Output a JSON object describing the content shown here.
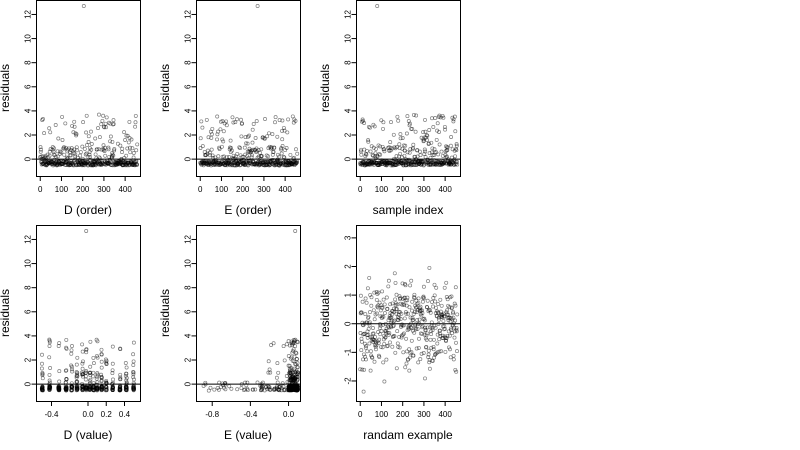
{
  "chart_data": [
    {
      "type": "scatter",
      "xlabel": "D (order)",
      "ylabel": "residuals",
      "xlim": [
        -20,
        470
      ],
      "ylim": [
        -1.4,
        13.2
      ],
      "xticks": [
        0,
        100,
        200,
        300,
        400
      ],
      "yticks": [
        0,
        2,
        4,
        6,
        8,
        10,
        12
      ],
      "xtick_labels": [
        "0",
        "100",
        "200",
        "300",
        "400"
      ],
      "ytick_labels": [
        "0",
        "2",
        "4",
        "6",
        "8",
        "10",
        "12"
      ],
      "hline": 0,
      "x_kind": "index",
      "x_max": 458,
      "outliers": [
        {
          "x": 205,
          "y": 12.7
        }
      ]
    },
    {
      "type": "scatter",
      "xlabel": "E (order)",
      "ylabel": "residuals",
      "xlim": [
        -20,
        470
      ],
      "ylim": [
        -1.4,
        13.2
      ],
      "xticks": [
        0,
        100,
        200,
        300,
        400
      ],
      "yticks": [
        0,
        2,
        4,
        6,
        8,
        10,
        12
      ],
      "xtick_labels": [
        "0",
        "100",
        "200",
        "300",
        "400"
      ],
      "ytick_labels": [
        "0",
        "2",
        "4",
        "6",
        "8",
        "10",
        "12"
      ],
      "hline": 0,
      "x_kind": "index",
      "x_max": 458,
      "outliers": [
        {
          "x": 270,
          "y": 12.7
        }
      ]
    },
    {
      "type": "scatter",
      "xlabel": "sample index",
      "ylabel": "residuals",
      "xlim": [
        -20,
        470
      ],
      "ylim": [
        -1.4,
        13.2
      ],
      "xticks": [
        0,
        100,
        200,
        300,
        400
      ],
      "yticks": [
        0,
        2,
        4,
        6,
        8,
        10,
        12
      ],
      "xtick_labels": [
        "0",
        "100",
        "200",
        "300",
        "400"
      ],
      "ytick_labels": [
        "0",
        "2",
        "4",
        "6",
        "8",
        "10",
        "12"
      ],
      "hline": 0,
      "x_kind": "index",
      "x_max": 458,
      "outliers": [
        {
          "x": 80,
          "y": 12.7
        }
      ]
    },
    {
      "type": "scatter",
      "xlabel": "D (value)",
      "ylabel": "residuals",
      "xlim": [
        -0.57,
        0.57
      ],
      "ylim": [
        -1.4,
        13.2
      ],
      "xticks": [
        -0.4,
        0.0,
        0.2,
        0.4
      ],
      "yticks": [
        0,
        2,
        4,
        6,
        8,
        10,
        12
      ],
      "xtick_labels": [
        "-0.4",
        "0.0",
        "0.2",
        "0.4"
      ],
      "ytick_labels": [
        "0",
        "2",
        "4",
        "6",
        "8",
        "10",
        "12"
      ],
      "hline": 0,
      "x_kind": "discrete",
      "x_levels": [
        -0.5,
        -0.42,
        -0.32,
        -0.24,
        -0.18,
        -0.12,
        -0.06,
        -0.02,
        0.02,
        0.06,
        0.1,
        0.15,
        0.2,
        0.27,
        0.35,
        0.42,
        0.5
      ],
      "outliers": [
        {
          "x": -0.02,
          "y": 12.7
        }
      ]
    },
    {
      "type": "scatter",
      "xlabel": "E (value)",
      "ylabel": "residuals",
      "xlim": [
        -0.97,
        0.12
      ],
      "ylim": [
        -1.4,
        13.2
      ],
      "xticks": [
        -0.8,
        -0.4,
        0.0
      ],
      "yticks": [
        0,
        2,
        4,
        6,
        8,
        10,
        12
      ],
      "xtick_labels": [
        "-0.8",
        "-0.4",
        "0.0"
      ],
      "ytick_labels": [
        "0",
        "2",
        "4",
        "6",
        "8",
        "10",
        "12"
      ],
      "hline": 0,
      "x_kind": "skewed",
      "outliers": [
        {
          "x": 0.07,
          "y": 12.7
        }
      ]
    },
    {
      "type": "scatter",
      "xlabel": "randam example",
      "ylabel": "residuals",
      "xlim": [
        -20,
        470
      ],
      "ylim": [
        -2.7,
        3.45
      ],
      "xticks": [
        0,
        100,
        200,
        300,
        400
      ],
      "yticks": [
        -2,
        -1,
        0,
        1,
        2,
        3
      ],
      "xtick_labels": [
        "0",
        "100",
        "200",
        "300",
        "400"
      ],
      "ytick_labels": [
        "-2",
        "-1",
        "0",
        "1",
        "2",
        "3"
      ],
      "hline": 0,
      "x_kind": "normal",
      "x_max": 458,
      "outliers": []
    }
  ]
}
